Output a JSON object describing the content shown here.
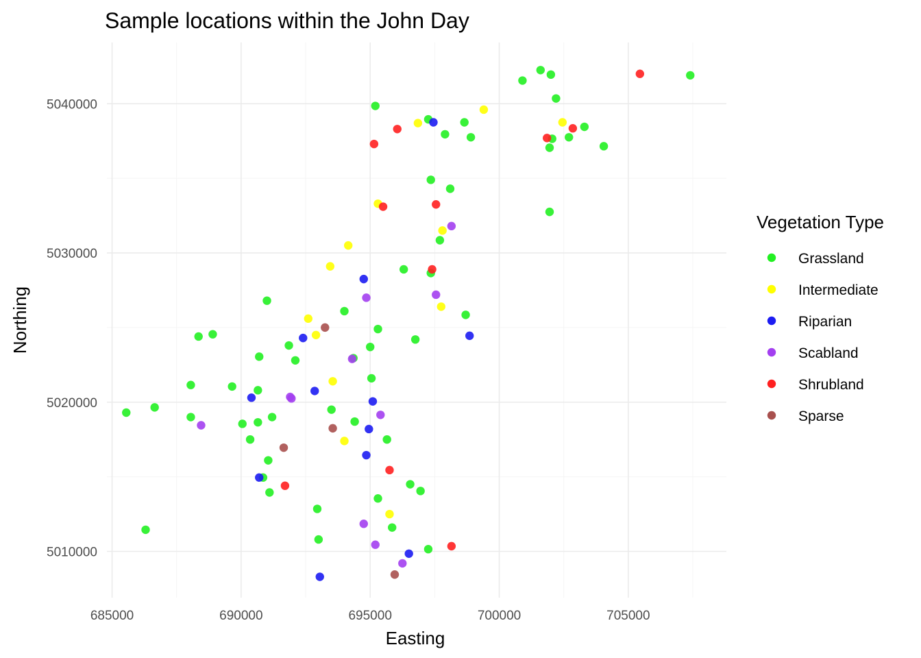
{
  "chart_data": {
    "type": "scatter",
    "title": "Sample locations within the John Day",
    "xlabel": "Easting",
    "ylabel": "Northing",
    "xlim": [
      684800,
      708800
    ],
    "ylim": [
      5006900,
      5044100
    ],
    "xticks": [
      685000,
      690000,
      695000,
      700000,
      705000
    ],
    "xtick_labels": [
      "685000",
      "690000",
      "695000",
      "700000",
      "705000"
    ],
    "yticks": [
      5010000,
      5020000,
      5030000,
      5040000
    ],
    "ytick_labels": [
      "5010000",
      "5020000",
      "5030000",
      "5040000"
    ],
    "grid": true,
    "legend": {
      "title": "Vegetation Type",
      "position": "right"
    },
    "series": [
      {
        "name": "Grassland",
        "color": "#22f022",
        "points": [
          [
            695200,
            5039850
          ],
          [
            697250,
            5038950
          ],
          [
            698650,
            5038750
          ],
          [
            697900,
            5037950
          ],
          [
            698900,
            5037750
          ],
          [
            700900,
            5041550
          ],
          [
            701600,
            5042250
          ],
          [
            702000,
            5041950
          ],
          [
            702200,
            5040350
          ],
          [
            702050,
            5037650
          ],
          [
            701950,
            5037050
          ],
          [
            702700,
            5037750
          ],
          [
            703300,
            5038450
          ],
          [
            704050,
            5037150
          ],
          [
            707400,
            5041900
          ],
          [
            697350,
            5034900
          ],
          [
            698100,
            5034300
          ],
          [
            701950,
            5032750
          ],
          [
            697700,
            5030850
          ],
          [
            696300,
            5028900
          ],
          [
            697350,
            5028650
          ],
          [
            691000,
            5026800
          ],
          [
            694000,
            5026100
          ],
          [
            698700,
            5025850
          ],
          [
            695300,
            5024900
          ],
          [
            688350,
            5024400
          ],
          [
            688900,
            5024550
          ],
          [
            691850,
            5023800
          ],
          [
            696750,
            5024200
          ],
          [
            695000,
            5023700
          ],
          [
            690700,
            5023050
          ],
          [
            692100,
            5022800
          ],
          [
            694350,
            5022950
          ],
          [
            695050,
            5021600
          ],
          [
            688050,
            5021150
          ],
          [
            689650,
            5021050
          ],
          [
            690650,
            5020800
          ],
          [
            685550,
            5019300
          ],
          [
            686650,
            5019650
          ],
          [
            688050,
            5019000
          ],
          [
            690050,
            5018550
          ],
          [
            690650,
            5018650
          ],
          [
            691200,
            5019000
          ],
          [
            693500,
            5019500
          ],
          [
            694400,
            5018700
          ],
          [
            690350,
            5017500
          ],
          [
            695650,
            5017500
          ],
          [
            691050,
            5016100
          ],
          [
            690850,
            5014950
          ],
          [
            691100,
            5013950
          ],
          [
            696550,
            5014500
          ],
          [
            696950,
            5014050
          ],
          [
            695300,
            5013550
          ],
          [
            692950,
            5012850
          ],
          [
            695850,
            5011600
          ],
          [
            686300,
            5011450
          ],
          [
            693000,
            5010800
          ],
          [
            697250,
            5010150
          ]
        ]
      },
      {
        "name": "Intermediate",
        "color": "#ffff00",
        "points": [
          [
            699400,
            5039600
          ],
          [
            696850,
            5038700
          ],
          [
            702450,
            5038750
          ],
          [
            695300,
            5033300
          ],
          [
            697800,
            5031500
          ],
          [
            694150,
            5030500
          ],
          [
            693450,
            5029100
          ],
          [
            697750,
            5026400
          ],
          [
            692600,
            5025600
          ],
          [
            692900,
            5024500
          ],
          [
            693550,
            5021400
          ],
          [
            694000,
            5017400
          ],
          [
            695750,
            5012500
          ]
        ]
      },
      {
        "name": "Riparian",
        "color": "#1c1cf2",
        "points": [
          [
            697450,
            5038750
          ],
          [
            694750,
            5028250
          ],
          [
            692400,
            5024300
          ],
          [
            698850,
            5024450
          ],
          [
            692850,
            5020750
          ],
          [
            690400,
            5020300
          ],
          [
            695100,
            5020050
          ],
          [
            694950,
            5018200
          ],
          [
            694850,
            5016450
          ],
          [
            690700,
            5014950
          ],
          [
            696500,
            5009850
          ],
          [
            693050,
            5008300
          ]
        ]
      },
      {
        "name": "Scabland",
        "color": "#a33ff0",
        "points": [
          [
            698150,
            5031800
          ],
          [
            697550,
            5027200
          ],
          [
            694850,
            5027000
          ],
          [
            694300,
            5022900
          ],
          [
            691900,
            5020350
          ],
          [
            691950,
            5020250
          ],
          [
            695400,
            5019150
          ],
          [
            688450,
            5018450
          ],
          [
            694750,
            5011850
          ],
          [
            695200,
            5010450
          ],
          [
            696250,
            5009200
          ]
        ]
      },
      {
        "name": "Shrubland",
        "color": "#ff2020",
        "points": [
          [
            696050,
            5038300
          ],
          [
            695150,
            5037300
          ],
          [
            701850,
            5037700
          ],
          [
            702850,
            5038350
          ],
          [
            705450,
            5042000
          ],
          [
            697550,
            5033250
          ],
          [
            695500,
            5033100
          ],
          [
            697400,
            5028900
          ],
          [
            695750,
            5015450
          ],
          [
            691700,
            5014400
          ],
          [
            698150,
            5010350
          ]
        ]
      },
      {
        "name": "Sparse",
        "color": "#a8504e",
        "points": [
          [
            693250,
            5025000
          ],
          [
            693550,
            5018250
          ],
          [
            691650,
            5016950
          ],
          [
            695950,
            5008450
          ]
        ]
      }
    ]
  }
}
